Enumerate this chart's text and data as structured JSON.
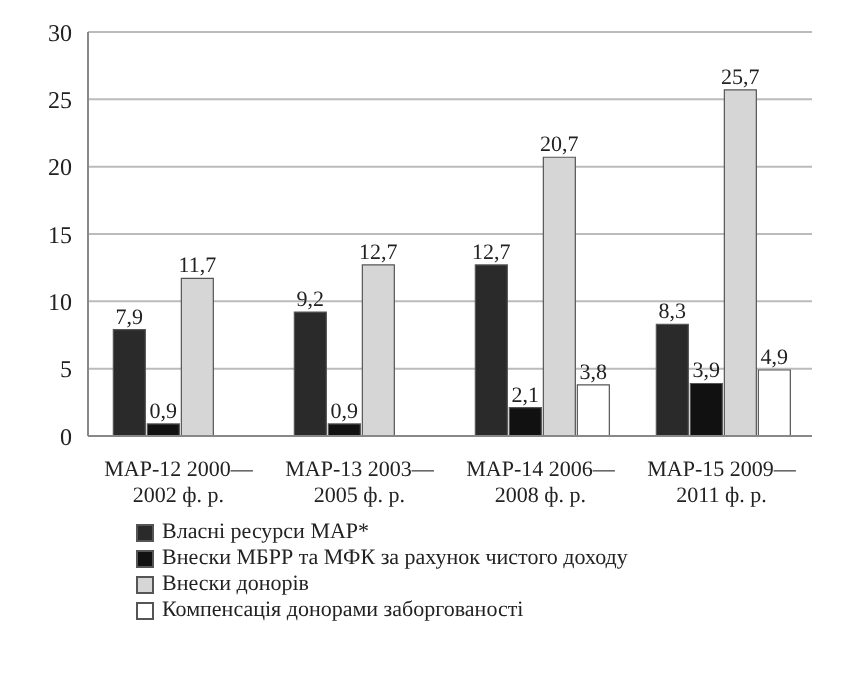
{
  "chart_data": {
    "type": "bar",
    "categories": [
      "МАР-12 2000—2002 ф. р.",
      "МАР-13 2003—2005 ф. р.",
      "МАР-14 2006—2008 ф. р.",
      "МАР-15 2009—2011 ф. р."
    ],
    "series": [
      {
        "name": "Власні ресурси МАР*",
        "color": "#2a2a2a",
        "values": [
          7.9,
          9.2,
          12.7,
          8.3
        ],
        "value_labels": [
          "7,9",
          "9,2",
          "12,7",
          "8,3"
        ]
      },
      {
        "name": "Внески МБРР та МФК за рахунок чистого доходу",
        "color": "#111111",
        "values": [
          0.9,
          0.9,
          2.1,
          3.9
        ],
        "value_labels": [
          "0,9",
          "0,9",
          "2,1",
          "3,9"
        ]
      },
      {
        "name": "Внески донорів",
        "color": "#d6d6d6",
        "values": [
          11.7,
          12.7,
          20.7,
          25.7
        ],
        "value_labels": [
          "11,7",
          "12,7",
          "20,7",
          "25,7"
        ]
      },
      {
        "name": "Компенсація донорами заборгованості",
        "color": "#ffffff",
        "values": [
          null,
          null,
          3.8,
          4.9
        ],
        "value_labels": [
          null,
          null,
          "3,8",
          "4,9"
        ]
      }
    ],
    "ylim": [
      0,
      30
    ],
    "yticks": [
      0,
      5,
      10,
      15,
      20,
      25,
      30
    ],
    "grid": "y",
    "legend": "bottom"
  }
}
